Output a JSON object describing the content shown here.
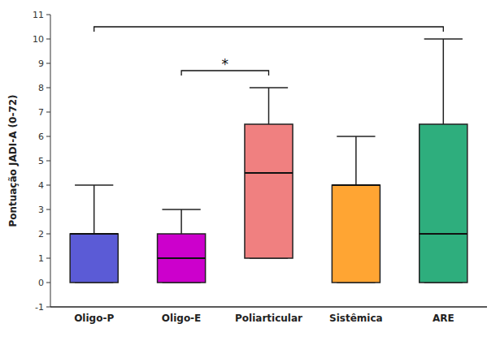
{
  "chart_data": {
    "type": "box",
    "categories": [
      "Oligo-P",
      "Oligo-E",
      "Poliarticular",
      "Sistêmica",
      "ARE"
    ],
    "values": [
      {
        "whislo": 0,
        "q1": 0,
        "med": 2,
        "q3": 2,
        "whishi": 4
      },
      {
        "whislo": 0,
        "q1": 0,
        "med": 1,
        "q3": 2,
        "whishi": 3
      },
      {
        "whislo": 1,
        "q1": 1,
        "med": 4.5,
        "q3": 6.5,
        "whishi": 8
      },
      {
        "whislo": 0,
        "q1": 0,
        "med": 4,
        "q3": 4,
        "whishi": 6
      },
      {
        "whislo": 0,
        "q1": 0,
        "med": 2,
        "q3": 6.5,
        "whishi": 10
      }
    ],
    "colors": [
      "#5B5BD6",
      "#CC00CC",
      "#F08080",
      "#FFA533",
      "#2EAE7D"
    ],
    "ylabel": "Pontuação JADI-A (0-72)",
    "ylim": [
      -1,
      11
    ],
    "yticks": [
      -1,
      0,
      1,
      2,
      3,
      4,
      5,
      6,
      7,
      8,
      9,
      10,
      11
    ],
    "annotations": [
      {
        "type": "bracket",
        "from": "Oligo-E",
        "to": "Poliarticular",
        "y": 8.7,
        "hook": 0.2,
        "label": "*"
      },
      {
        "type": "bracket",
        "from": "Oligo-P",
        "to": "ARE",
        "y": 10.5,
        "hook": 0.2
      }
    ]
  }
}
